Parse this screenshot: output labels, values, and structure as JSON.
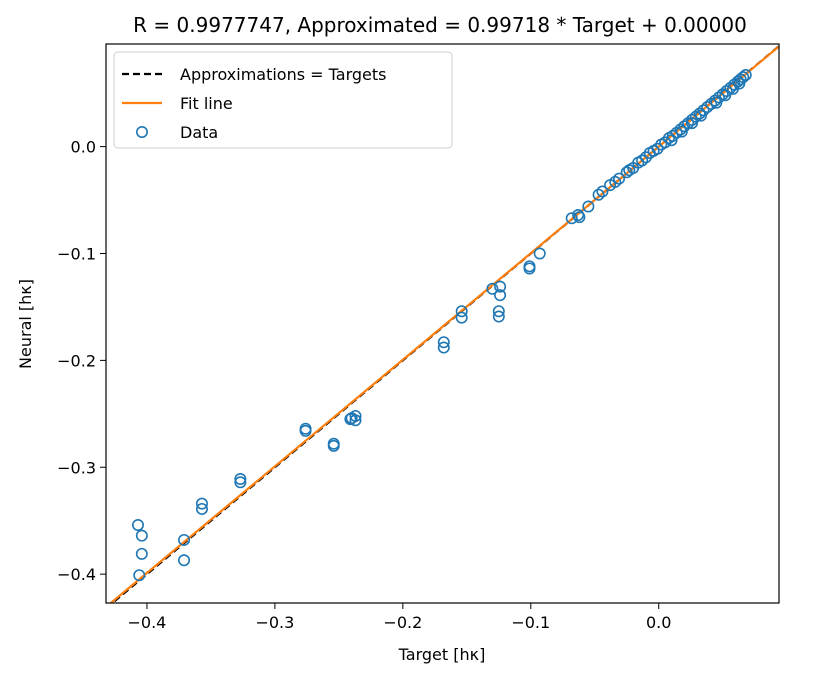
{
  "chart_data": {
    "type": "scatter",
    "title": "R = 0.9977747, Approximated = 0.99718 * Target + 0.00000",
    "xlabel": "Target [hκ]",
    "ylabel": "Neural [hκ]",
    "xlim": [
      -0.432,
      0.094
    ],
    "ylim": [
      -0.427,
      0.096
    ],
    "x_ticks": [
      -0.4,
      -0.3,
      -0.2,
      -0.1,
      0.0
    ],
    "x_tick_labels": [
      "−0.4",
      "−0.3",
      "−0.2",
      "−0.1",
      "0.0"
    ],
    "y_ticks": [
      -0.4,
      -0.3,
      -0.2,
      -0.1,
      0.0
    ],
    "y_tick_labels": [
      "−0.4",
      "−0.3",
      "−0.2",
      "−0.1",
      "0.0"
    ],
    "grid": false,
    "legend_position": "top-left",
    "legend": [
      {
        "label": "Approximations = Targets",
        "style": "dashed-line",
        "color": "#000000"
      },
      {
        "label": "Fit line",
        "style": "line",
        "color": "#ff7f0e"
      },
      {
        "label": "Data",
        "style": "hollow-circle",
        "color": "#1f77b4"
      }
    ],
    "lines": [
      {
        "name": "Approximations = Targets",
        "slope": 1.0,
        "intercept": 0.0,
        "color": "#000000",
        "dash": true
      },
      {
        "name": "Fit line",
        "slope": 0.99718,
        "intercept": 0.0,
        "color": "#ff7f0e",
        "dash": false
      }
    ],
    "series": [
      {
        "name": "Data",
        "color": "#1f77b4",
        "points": [
          [
            -0.407,
            -0.354
          ],
          [
            -0.404,
            -0.364
          ],
          [
            -0.404,
            -0.381
          ],
          [
            -0.406,
            -0.401
          ],
          [
            -0.371,
            -0.368
          ],
          [
            -0.371,
            -0.387
          ],
          [
            -0.357,
            -0.334
          ],
          [
            -0.357,
            -0.339
          ],
          [
            -0.327,
            -0.311
          ],
          [
            -0.327,
            -0.314
          ],
          [
            -0.276,
            -0.264
          ],
          [
            -0.276,
            -0.266
          ],
          [
            -0.254,
            -0.278
          ],
          [
            -0.254,
            -0.28
          ],
          [
            -0.24,
            -0.254
          ],
          [
            -0.237,
            -0.252
          ],
          [
            -0.237,
            -0.256
          ],
          [
            -0.241,
            -0.255
          ],
          [
            -0.168,
            -0.183
          ],
          [
            -0.168,
            -0.188
          ],
          [
            -0.154,
            -0.154
          ],
          [
            -0.154,
            -0.16
          ],
          [
            -0.13,
            -0.133
          ],
          [
            -0.124,
            -0.131
          ],
          [
            -0.124,
            -0.139
          ],
          [
            -0.125,
            -0.154
          ],
          [
            -0.125,
            -0.159
          ],
          [
            -0.101,
            -0.112
          ],
          [
            -0.101,
            -0.114
          ],
          [
            -0.093,
            -0.1
          ],
          [
            -0.068,
            -0.067
          ],
          [
            -0.063,
            -0.064
          ],
          [
            -0.062,
            -0.066
          ],
          [
            -0.055,
            -0.056
          ],
          [
            -0.047,
            -0.045
          ],
          [
            -0.044,
            -0.042
          ],
          [
            -0.038,
            -0.036
          ],
          [
            -0.034,
            -0.033
          ],
          [
            -0.031,
            -0.03
          ],
          [
            -0.025,
            -0.024
          ],
          [
            -0.023,
            -0.022
          ],
          [
            -0.02,
            -0.02
          ],
          [
            -0.016,
            -0.015
          ],
          [
            -0.013,
            -0.013
          ],
          [
            -0.01,
            -0.01
          ],
          [
            -0.007,
            -0.006
          ],
          [
            -0.004,
            -0.004
          ],
          [
            -0.001,
            -0.002
          ],
          [
            0.002,
            0.002
          ],
          [
            0.005,
            0.004
          ],
          [
            0.008,
            0.008
          ],
          [
            0.011,
            0.01
          ],
          [
            0.014,
            0.013
          ],
          [
            0.017,
            0.016
          ],
          [
            0.02,
            0.019
          ],
          [
            0.023,
            0.022
          ],
          [
            0.026,
            0.025
          ],
          [
            0.029,
            0.028
          ],
          [
            0.032,
            0.031
          ],
          [
            0.035,
            0.034
          ],
          [
            0.038,
            0.037
          ],
          [
            0.041,
            0.04
          ],
          [
            0.044,
            0.043
          ],
          [
            0.047,
            0.046
          ],
          [
            0.05,
            0.049
          ],
          [
            0.053,
            0.052
          ],
          [
            0.056,
            0.055
          ],
          [
            0.059,
            0.058
          ],
          [
            0.062,
            0.061
          ],
          [
            0.064,
            0.063
          ],
          [
            0.066,
            0.065
          ],
          [
            0.068,
            0.067
          ],
          [
            0.045,
            0.041
          ],
          [
            0.052,
            0.048
          ],
          [
            0.058,
            0.054
          ],
          [
            0.063,
            0.059
          ],
          [
            0.033,
            0.029
          ],
          [
            0.026,
            0.022
          ],
          [
            0.018,
            0.014
          ],
          [
            0.01,
            0.006
          ]
        ]
      }
    ]
  }
}
